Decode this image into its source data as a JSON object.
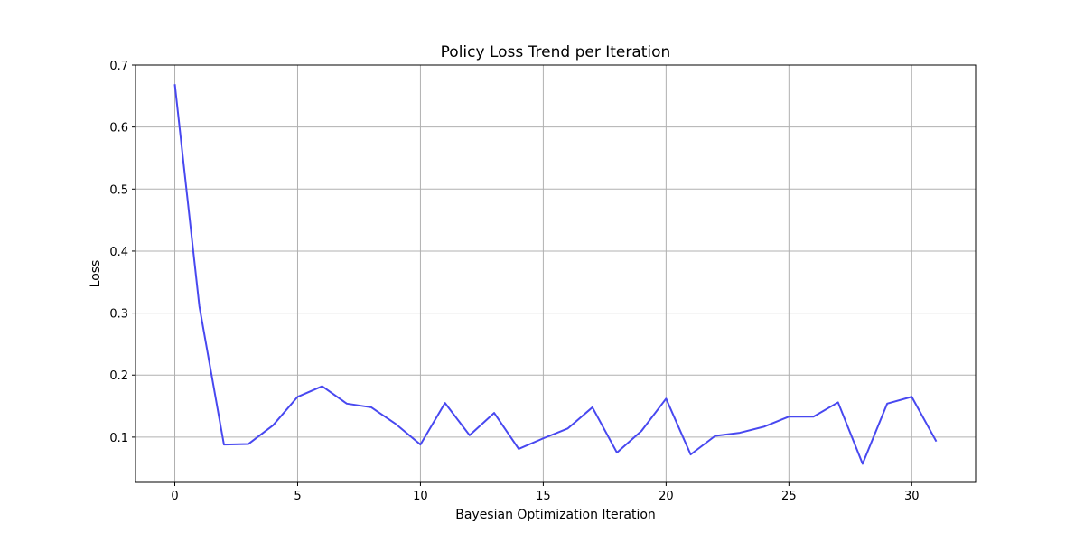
{
  "chart_data": {
    "type": "line",
    "title": "Policy Loss Trend per Iteration",
    "xlabel": "Bayesian Optimization Iteration",
    "ylabel": "Loss",
    "xlim": [
      -1.6,
      32.6
    ],
    "ylim": [
      0.027,
      0.7
    ],
    "xticks": [
      0,
      5,
      10,
      15,
      20,
      25,
      30
    ],
    "yticks": [
      0.1,
      0.2,
      0.3,
      0.4,
      0.5,
      0.6,
      0.7
    ],
    "xtick_labels": [
      "0",
      "5",
      "10",
      "15",
      "20",
      "25",
      "30"
    ],
    "ytick_labels": [
      "0.1",
      "0.2",
      "0.3",
      "0.4",
      "0.5",
      "0.6",
      "0.7"
    ],
    "grid": true,
    "line_color": "#4848f0",
    "series": [
      {
        "x": [
          0,
          1,
          2,
          3,
          4,
          5,
          6,
          7,
          8,
          9,
          10,
          11,
          12,
          13,
          14,
          15,
          16,
          17,
          18,
          19,
          20,
          21,
          22,
          23,
          24,
          25,
          26,
          27,
          28,
          29,
          30,
          31
        ],
        "values": [
          0.669,
          0.311,
          0.088,
          0.089,
          0.119,
          0.165,
          0.182,
          0.154,
          0.148,
          0.121,
          0.088,
          0.155,
          0.103,
          0.139,
          0.081,
          0.098,
          0.114,
          0.148,
          0.075,
          0.11,
          0.162,
          0.072,
          0.102,
          0.107,
          0.117,
          0.133,
          0.133,
          0.156,
          0.057,
          0.154,
          0.165,
          0.093
        ]
      }
    ]
  }
}
